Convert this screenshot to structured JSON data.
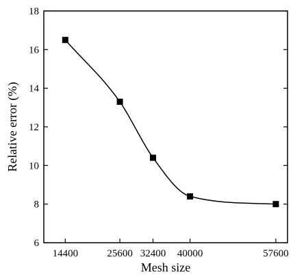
{
  "chart_data": {
    "type": "line",
    "xlabel": "Mesh size",
    "ylabel": "Relative error (%)",
    "categories": [
      "14400",
      "25600",
      "32400",
      "40000",
      "57600"
    ],
    "x": [
      14400,
      25600,
      32400,
      40000,
      57600
    ],
    "xlim": [
      10000,
      60000
    ],
    "ylim": [
      6,
      18
    ],
    "yticks": [
      6,
      8,
      10,
      12,
      14,
      16,
      18
    ],
    "series": [
      {
        "values": [
          16.5,
          13.3,
          10.4,
          8.4,
          8.0
        ],
        "marker": "square",
        "line": "smooth",
        "color": "#000000"
      }
    ],
    "grid": false,
    "legend": "none"
  }
}
